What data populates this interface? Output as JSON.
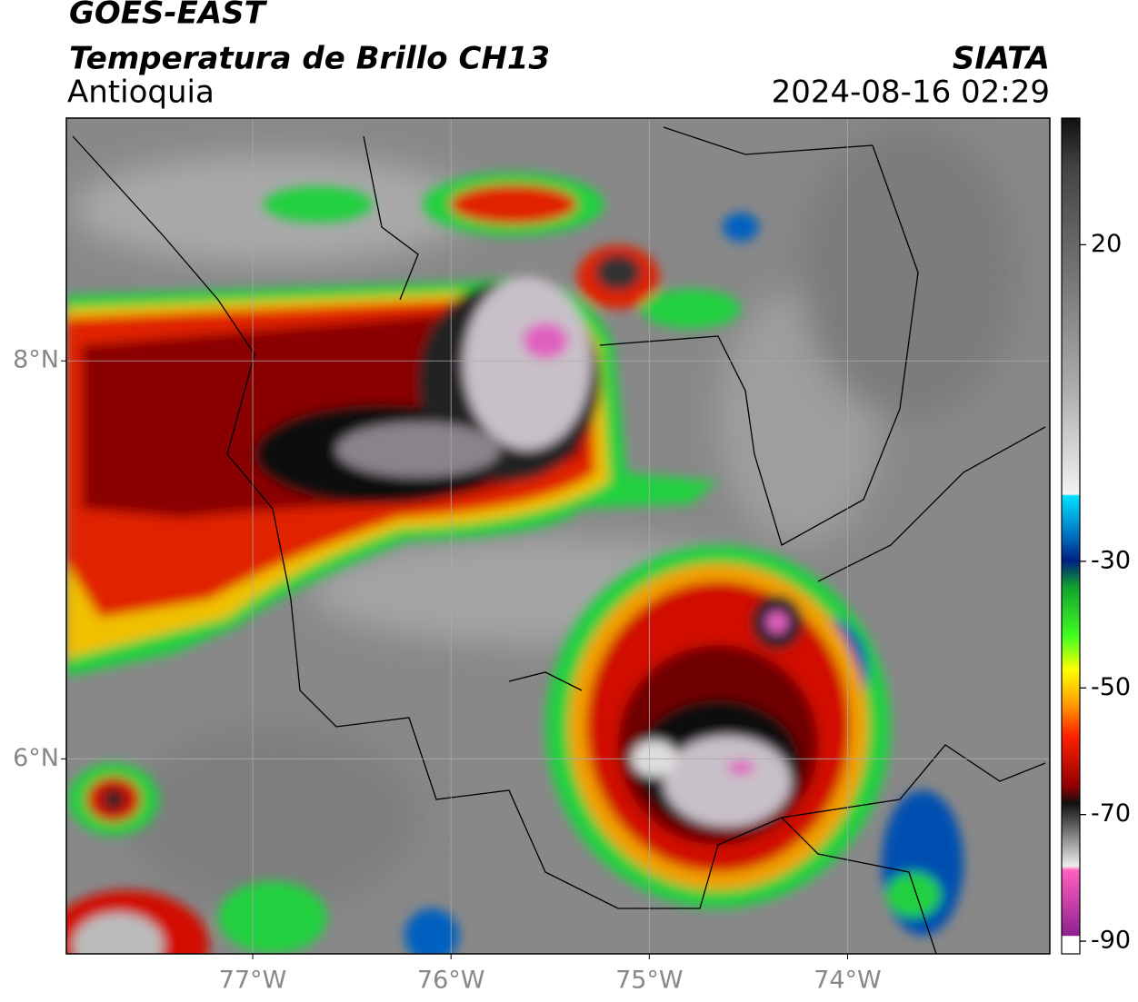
{
  "header": {
    "satellite": "GOES-EAST",
    "product": "Temperatura de Brillo CH13",
    "region": "Antioquia",
    "source": "SIATA",
    "datetime": "2024-08-16 02:29"
  },
  "map": {
    "lon_range": [
      -77.94,
      -72.98
    ],
    "lat_range": [
      5.02,
      9.22
    ],
    "lon_ticks": [
      {
        "value": -77,
        "label": "77°W"
      },
      {
        "value": -76,
        "label": "76°W"
      },
      {
        "value": -75,
        "label": "75°W"
      },
      {
        "value": -74,
        "label": "74°W"
      }
    ],
    "lat_ticks": [
      {
        "value": 8,
        "label": "8°N"
      },
      {
        "value": 6,
        "label": "6°N"
      }
    ]
  },
  "colorbar": {
    "range": [
      40,
      -92
    ],
    "ticks": [
      20,
      -30,
      -50,
      -70,
      -90
    ]
  }
}
